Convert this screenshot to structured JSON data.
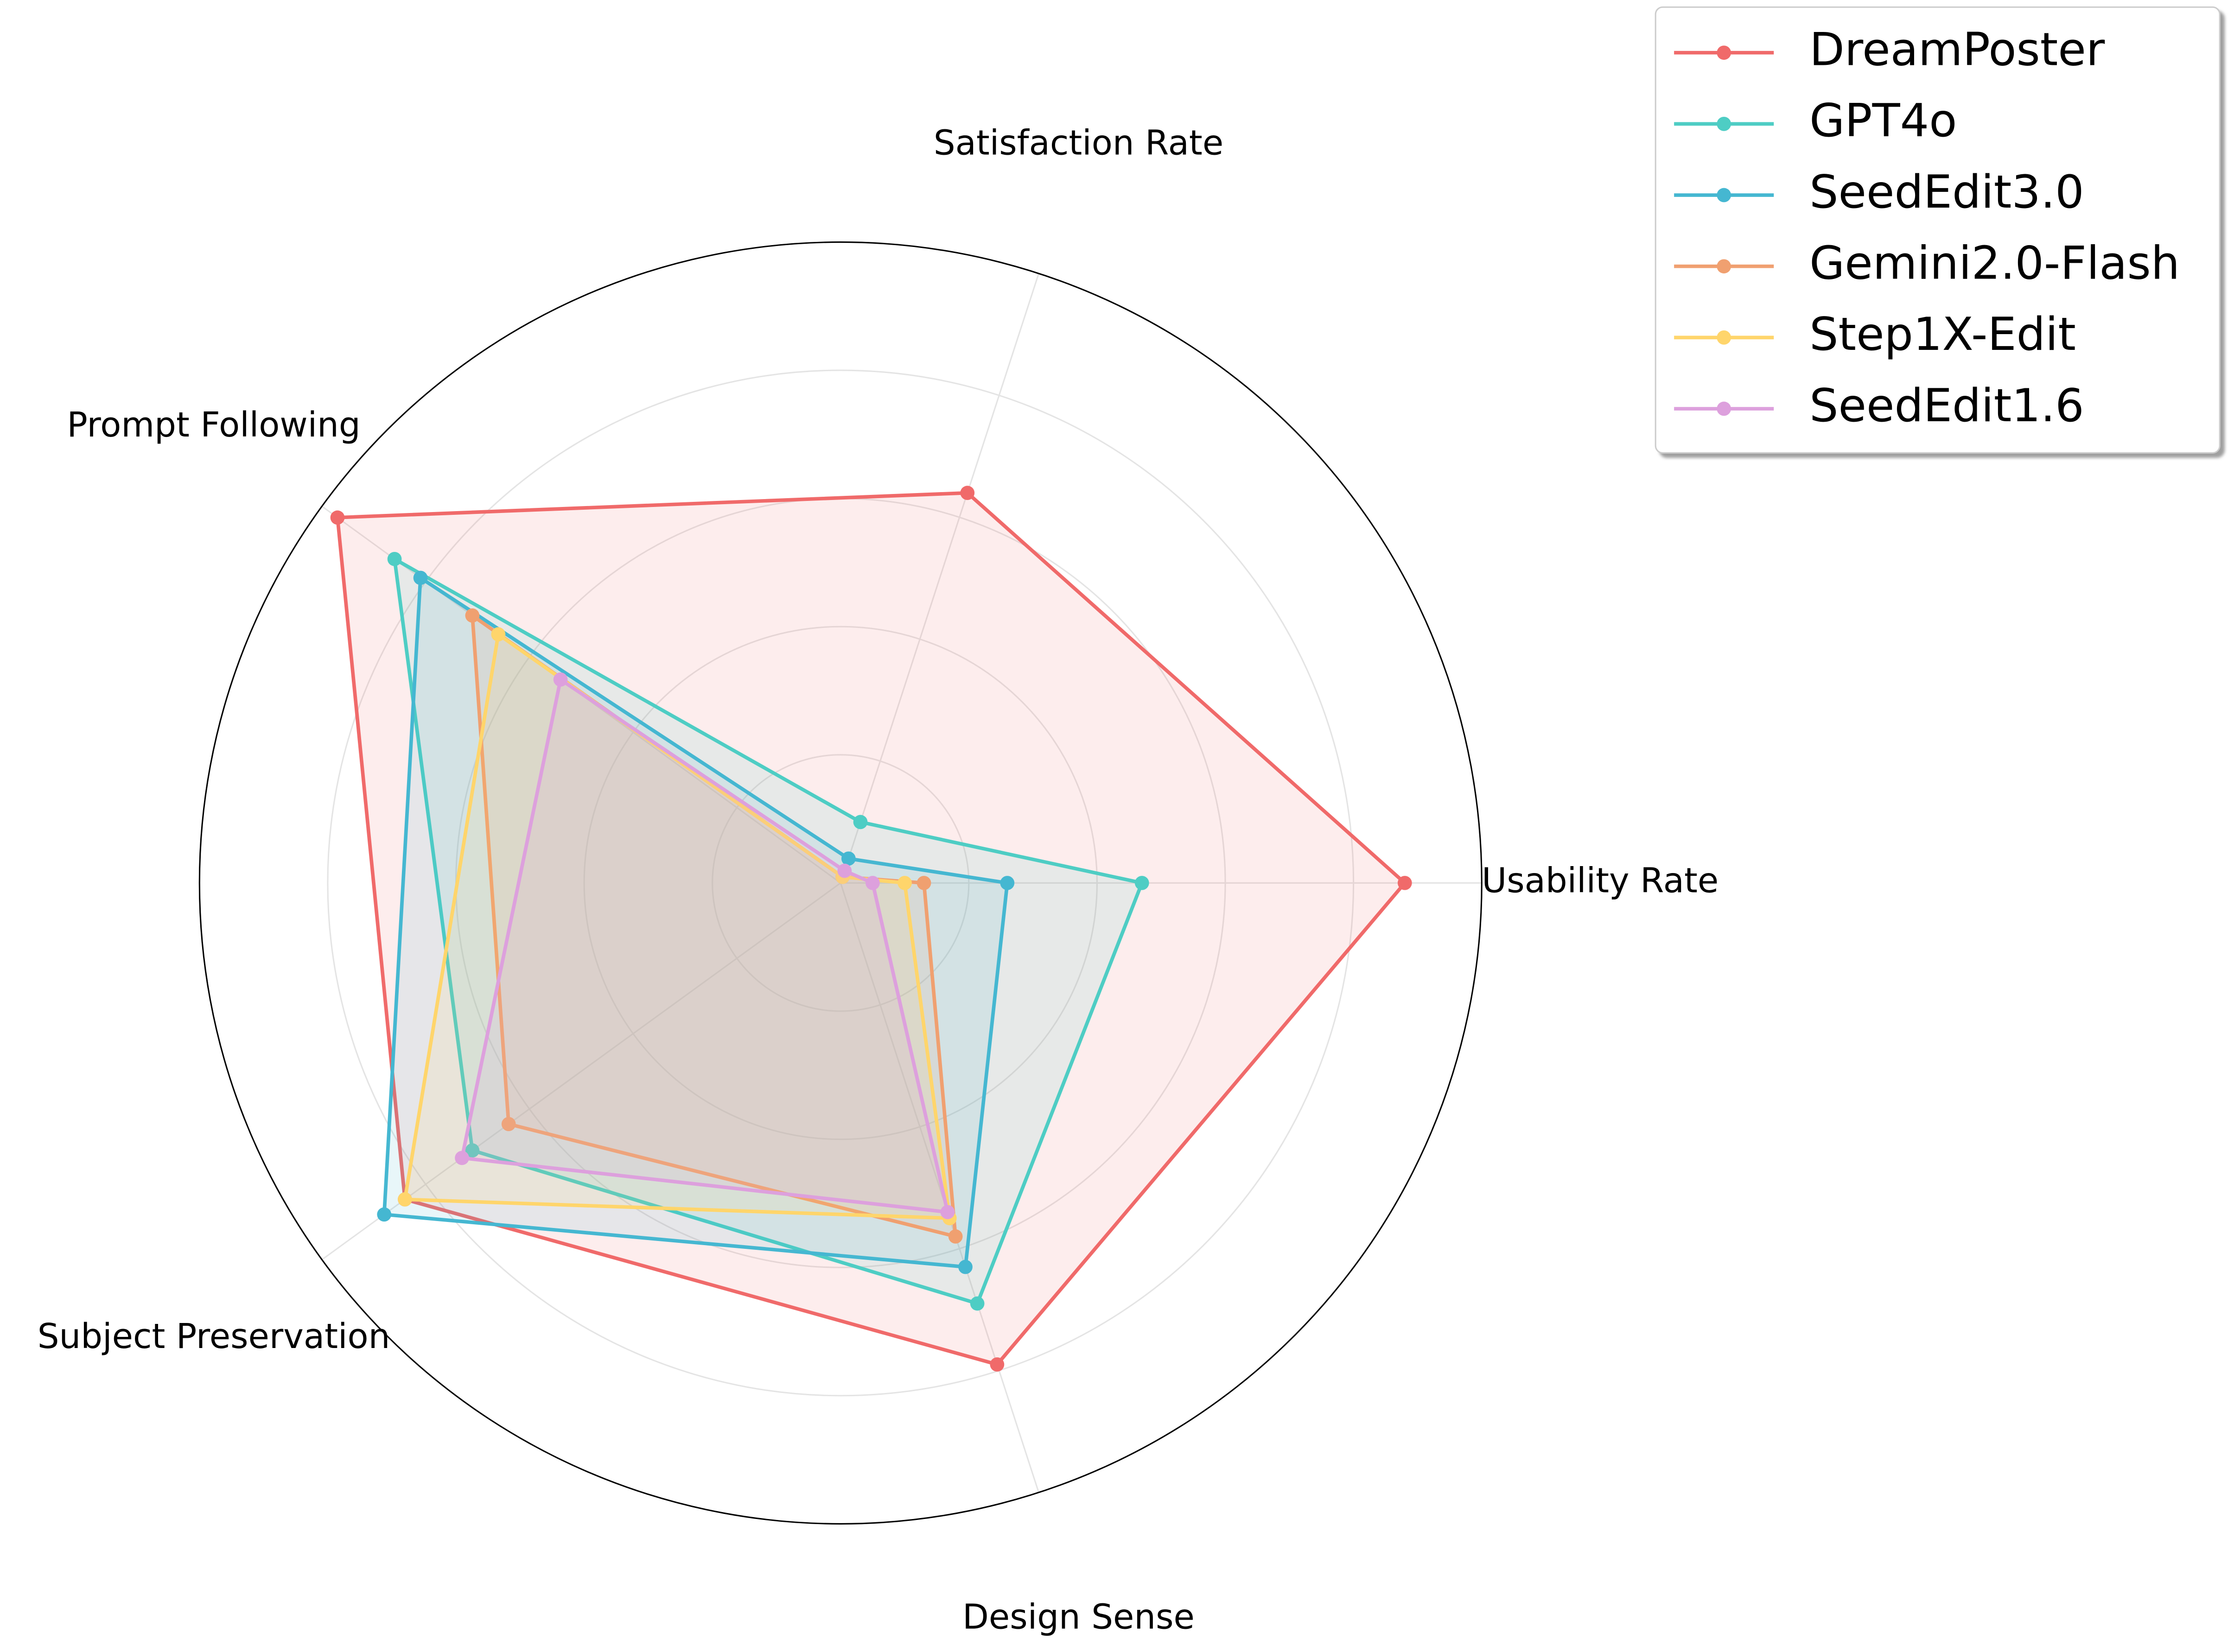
{
  "chart_data": {
    "type": "radar",
    "categories": [
      "Usability Rate",
      "Satisfaction Rate",
      "Prompt Following",
      "Subject Preservation",
      "Design Sense"
    ],
    "ylim": [
      0,
      1
    ],
    "yticks": [
      0.2,
      0.4,
      0.6,
      0.8
    ],
    "grid": true,
    "legend": "upper right",
    "series": [
      {
        "name": "DreamPoster",
        "color": "#f06a6a",
        "values": [
          0.88,
          0.64,
          0.97,
          0.84,
          0.79
        ]
      },
      {
        "name": "GPT4o",
        "color": "#4ecdc4",
        "values": [
          0.47,
          0.1,
          0.86,
          0.71,
          0.69
        ]
      },
      {
        "name": "SeedEdit3.0",
        "color": "#45b7d1",
        "values": [
          0.26,
          0.04,
          0.81,
          0.88,
          0.63
        ]
      },
      {
        "name": "Gemini2.0-Flash",
        "color": "#f0a070",
        "values": [
          0.13,
          0.01,
          0.71,
          0.64,
          0.58
        ]
      },
      {
        "name": "Step1X-Edit",
        "color": "#ffd56b",
        "values": [
          0.1,
          0.01,
          0.66,
          0.84,
          0.55
        ]
      },
      {
        "name": "SeedEdit1.6",
        "color": "#dda0dd",
        "values": [
          0.05,
          0.02,
          0.54,
          0.73,
          0.54
        ]
      }
    ]
  }
}
